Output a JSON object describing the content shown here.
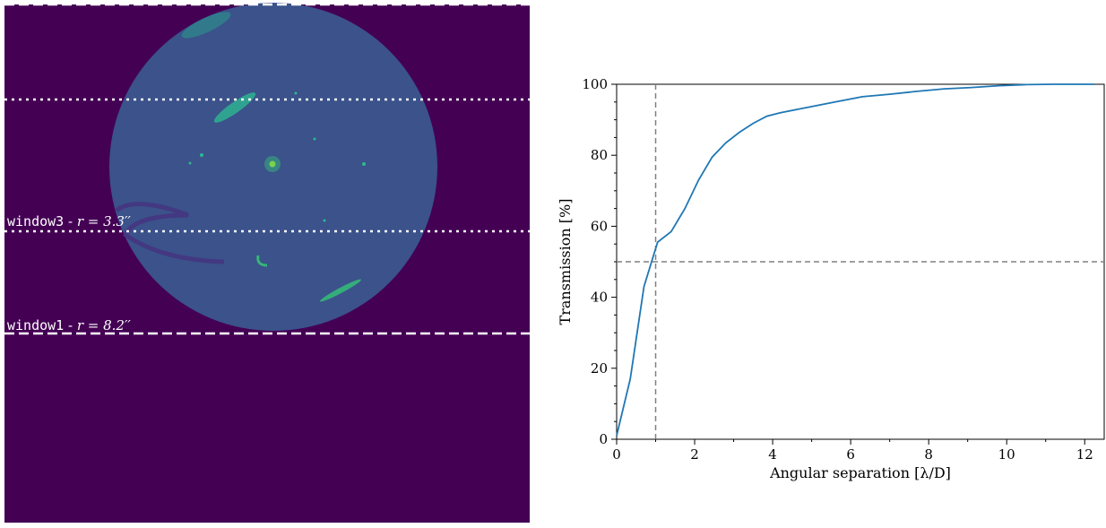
{
  "image_panel": {
    "window3_label": "window3",
    "window3_radius": "r = 3.3′′",
    "window1_label": "window1",
    "window1_radius": "r = 8.2′′",
    "background_color": "#440154",
    "disk_color": "#3b528b"
  },
  "chart_data": {
    "type": "line",
    "xlabel": "Angular separation [λ/D]",
    "ylabel": "Transmission [%]",
    "xlim": [
      0,
      12.5
    ],
    "ylim": [
      0,
      100
    ],
    "xticks": [
      "0",
      "2",
      "4",
      "6",
      "8",
      "10",
      "12"
    ],
    "yticks": [
      "0",
      "20",
      "40",
      "60",
      "80",
      "100"
    ],
    "series_color": "#1f77b4",
    "x": [
      0,
      0.35,
      0.7,
      1.05,
      1.4,
      1.75,
      2.1,
      2.45,
      2.8,
      3.15,
      3.5,
      3.85,
      4.2,
      4.9,
      5.6,
      6.3,
      7.0,
      7.7,
      8.4,
      9.1,
      9.8,
      10.5,
      11.2,
      12.25
    ],
    "y": [
      1,
      17,
      43,
      55.5,
      58.5,
      65,
      73,
      79.5,
      83.5,
      86.5,
      89,
      91,
      92,
      93.5,
      95,
      96.5,
      97.2,
      98,
      98.7,
      99.1,
      99.6,
      99.9,
      100,
      100
    ],
    "reference_lines": {
      "vertical_x": 1.0,
      "horizontal_y": 50
    }
  }
}
